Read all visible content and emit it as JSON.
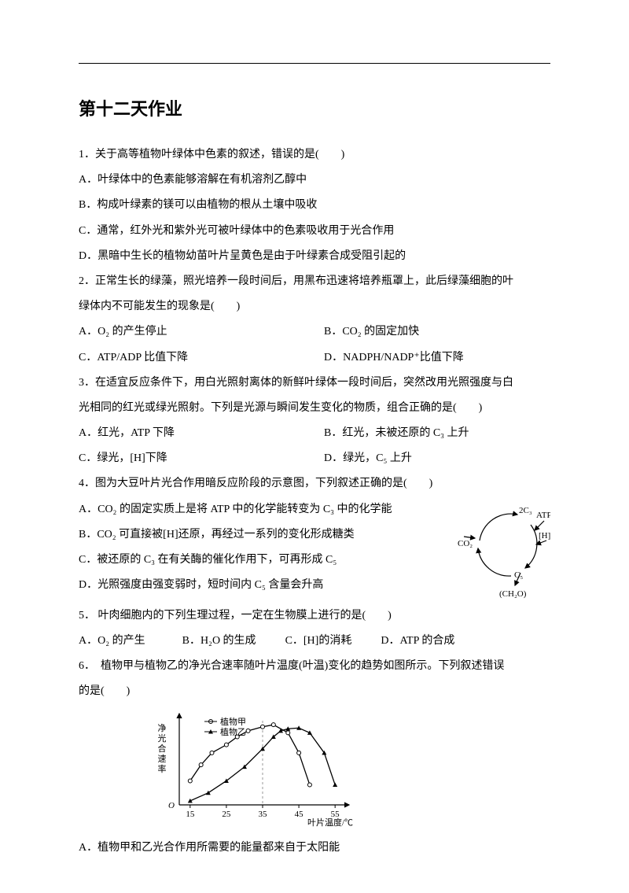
{
  "title": "第十二天作业",
  "q1": {
    "stem": "1．关于高等植物叶绿体中色素的叙述，错误的是(　　)",
    "a": "A．叶绿体中的色素能够溶解在有机溶剂乙醇中",
    "b": "B．构成叶绿素的镁可以由植物的根从土壤中吸收",
    "c": "C．通常，红外光和紫外光可被叶绿体中的色素吸收用于光合作用",
    "d": "D．黑暗中生长的植物幼苗叶片呈黄色是由于叶绿素合成受阻引起的"
  },
  "q2": {
    "stem1": "2．正常生长的绿藻，照光培养一段时间后，用黑布迅速将培养瓶罩上，此后绿藻细胞的叶",
    "stem2": "绿体内不可能发生的现象是(　　)",
    "a": "A．O₂ 的产生停止",
    "b": "B．CO₂ 的固定加快",
    "c": "C．ATP/ADP 比值下降",
    "d": "D．NADPH/NADP⁺比值下降"
  },
  "q3": {
    "stem1": "3．在适宜反应条件下，用白光照射离体的新鲜叶绿体一段时间后，突然改用光照强度与白",
    "stem2": "光相同的红光或绿光照射。下列是光源与瞬间发生变化的物质，组合正确的是(　　)",
    "a": "A．红光，ATP 下降",
    "b": "B．红光，未被还原的 C₃ 上升",
    "c": "C．绿光，[H]下降",
    "d": "D．绿光，C₅ 上升"
  },
  "q4": {
    "stem": "4．图为大豆叶片光合作用暗反应阶段的示意图，下列叙述正确的是(　　)",
    "a": "A．CO₂ 的固定实质上是将 ATP 中的化学能转变为 C₃ 中的化学能",
    "b": "B．CO₂ 可直接被[H]还原，再经过一系列的变化形成糖类",
    "c": "C．被还原的 C₃ 在有关酶的催化作用下，可再形成 C₅",
    "d": "D．光照强度由强变弱时，短时间内 C₅ 含量会升高",
    "diagram": {
      "labels": {
        "co2": "CO₂",
        "c3": "2C₃",
        "atp": "ATP",
        "h": "[H]",
        "c5": "C₅",
        "ch2o": "(CH₂O)"
      }
    }
  },
  "q5": {
    "stem": "5． 叶肉细胞内的下列生理过程，一定在生物膜上进行的是(　　)",
    "a": "A．O₂ 的产生",
    "b": "B．H₂O 的生成",
    "c": "C．[H]的消耗",
    "d": "D．ATP 的合成"
  },
  "q6": {
    "stem1": "6．　植物甲与植物乙的净光合速率随叶片温度(叶温)变化的趋势如图所示。下列叙述错误",
    "stem2": "的是(　　)",
    "last": "A．植物甲和乙光合作用所需要的能量都来自于太阳能",
    "chart": {
      "type": "line",
      "xlabel": "叶片温度/℃",
      "ylabel": "净光合速率",
      "xticks": [
        15,
        25,
        35,
        45,
        55
      ],
      "legend": [
        "植物甲",
        "植物乙"
      ],
      "colors": {
        "axis": "#000000",
        "series_a": "#000000",
        "series_b": "#000000",
        "grid": "#999999"
      },
      "marker_a": "circle-open",
      "marker_b": "triangle-filled",
      "series_a_x": [
        15,
        18,
        21,
        25,
        28,
        31,
        35,
        38,
        42,
        45,
        48
      ],
      "series_a_y": [
        6,
        10,
        13,
        15,
        17,
        18.5,
        19.5,
        20,
        18,
        13,
        5
      ],
      "series_b_x": [
        15,
        20,
        25,
        30,
        35,
        38,
        40,
        42,
        45,
        48,
        52,
        55
      ],
      "series_b_y": [
        1,
        3,
        6,
        9.5,
        14,
        17,
        18.5,
        19,
        19.2,
        18,
        13,
        5
      ],
      "dashed_x": 35,
      "ylim": [
        0,
        22
      ],
      "xlim": [
        12,
        58
      ],
      "font_size": 11
    }
  }
}
